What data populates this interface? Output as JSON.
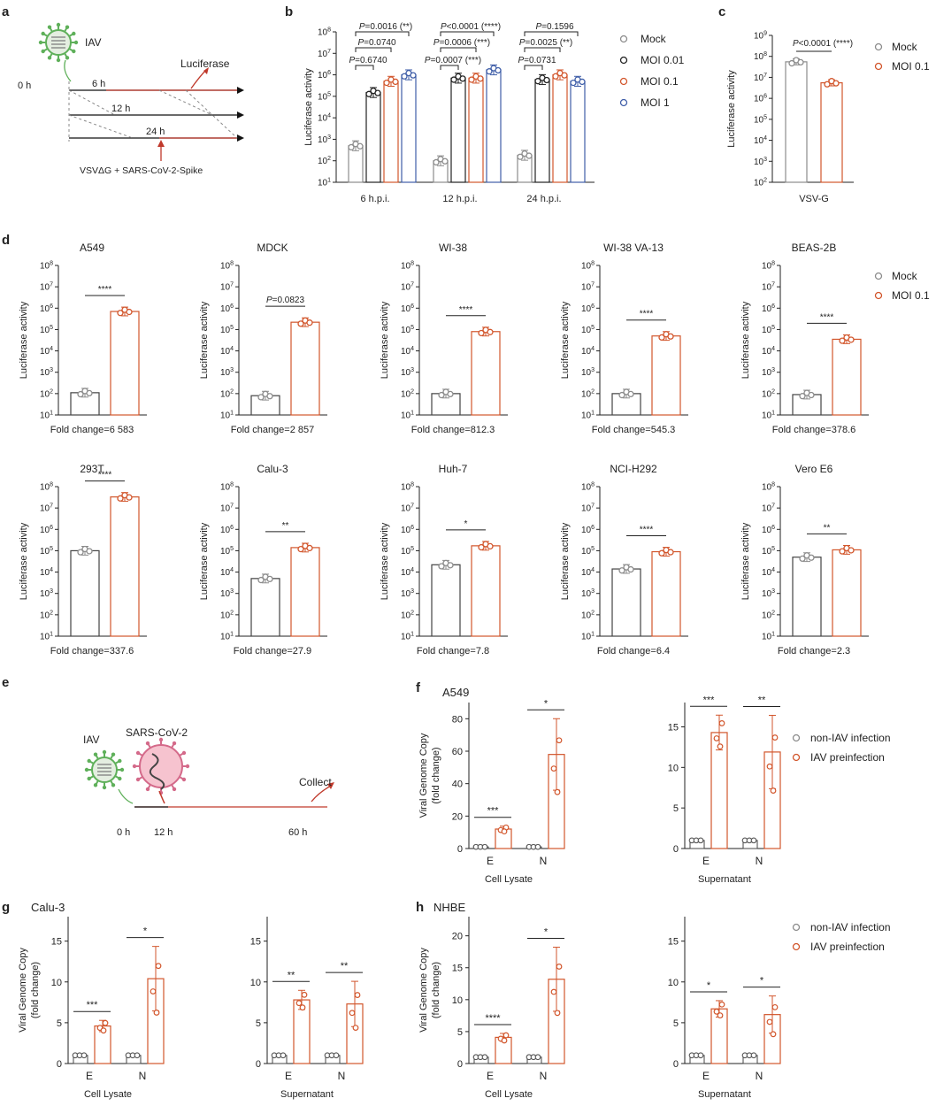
{
  "panel_letters": [
    "a",
    "b",
    "c",
    "d",
    "e",
    "f",
    "g",
    "h"
  ],
  "colors": {
    "mock": "#8c8c8c",
    "moi001": "#222222",
    "moi01": "#d2562c",
    "moi1": "#3f5ea8",
    "axis": "#222222",
    "virus_green": "#5fb05a",
    "virus_pink": "#e48aa3",
    "arrow_red": "#c0392b"
  },
  "schematic_a": {
    "virus": "IAV",
    "t0": "0 h",
    "t6": "6 h",
    "t12": "12 h",
    "t24": "24 h",
    "readout": "Luciferase",
    "pseudovirus": "VSVΔG + SARS-CoV-2-Spike"
  },
  "schematic_e": {
    "virus1": "IAV",
    "virus2": "SARS-CoV-2",
    "t0": "0 h",
    "t12": "12 h",
    "t60": "60 h",
    "collect": "Collect"
  },
  "legend_b": [
    "Mock",
    "MOI 0.01",
    "MOI 0.1",
    "MOI 1"
  ],
  "legend_c": [
    "Mock",
    "MOI 0.1"
  ],
  "legend_d": [
    "Mock",
    "MOI 0.1"
  ],
  "legend_fgh": [
    "non-IAV infection",
    "IAV preinfection"
  ],
  "chart_data": [
    {
      "id": "b",
      "type": "bar",
      "scale": "log",
      "ylabel": "Luciferase activity",
      "ylim": [
        10,
        100000000
      ],
      "yticks": [
        "10^1",
        "10^2",
        "10^3",
        "10^4",
        "10^5",
        "10^6",
        "10^7",
        "10^8"
      ],
      "categories": [
        "6 h.p.i.",
        "12 h.p.i.",
        "24 h.p.i."
      ],
      "series": [
        {
          "name": "Mock",
          "values": [
            500,
            100,
            180
          ]
        },
        {
          "name": "MOI 0.01",
          "values": [
            150000,
            700000,
            600000
          ]
        },
        {
          "name": "MOI 0.1",
          "values": [
            500000,
            700000,
            1000000
          ]
        },
        {
          "name": "MOI 1",
          "values": [
            1000000,
            1700000,
            500000
          ]
        }
      ],
      "annotations": [
        [
          "6 h.p.i.",
          "P=0.6740",
          "P=0.0740",
          "P=0.0016 (**)"
        ],
        [
          "12 h.p.i.",
          "P=0.0007 (***)",
          "P=0.0006 (***)",
          "P<0.0001 (****)"
        ],
        [
          "24 h.p.i.",
          "P=0.0731",
          "P=0.0025 (**)",
          "P=0.1596"
        ]
      ]
    },
    {
      "id": "c",
      "type": "bar",
      "scale": "log",
      "ylabel": "Luciferase activity",
      "ylim": [
        100,
        1000000000
      ],
      "yticks": [
        "10^2",
        "10^3",
        "10^4",
        "10^5",
        "10^6",
        "10^7",
        "10^8",
        "10^9"
      ],
      "categories": [
        "VSV-G"
      ],
      "series": [
        {
          "name": "Mock",
          "values": [
            55000000
          ]
        },
        {
          "name": "MOI 0.1",
          "values": [
            5500000
          ]
        }
      ],
      "annotations": [
        "P<0.0001 (****)"
      ]
    },
    {
      "id": "d",
      "type": "bar",
      "scale": "log",
      "ylabel": "Luciferase activity",
      "ylim": [
        10,
        100000000
      ],
      "yticks": [
        "10^1",
        "10^2",
        "10^3",
        "10^4",
        "10^5",
        "10^6",
        "10^7",
        "10^8"
      ],
      "series_names": [
        "Mock",
        "MOI 0.1"
      ],
      "subplots": [
        {
          "title": "A549",
          "mock": 110,
          "moi": 700000,
          "sig": "****",
          "fold": "Fold change=6 583"
        },
        {
          "title": "MDCK",
          "mock": 80,
          "moi": 220000,
          "sig": "P=0.0823",
          "fold": "Fold change=2 857"
        },
        {
          "title": "WI-38",
          "mock": 100,
          "moi": 80000,
          "sig": "****",
          "fold": "Fold change=812.3"
        },
        {
          "title": "WI-38 VA-13",
          "mock": 100,
          "moi": 50000,
          "sig": "****",
          "fold": "Fold change=545.3"
        },
        {
          "title": "BEAS-2B",
          "mock": 90,
          "moi": 35000,
          "sig": "****",
          "fold": "Fold change=378.6"
        },
        {
          "title": "293T",
          "mock": 100000,
          "moi": 33000000,
          "sig": "****",
          "fold": "Fold change=337.6"
        },
        {
          "title": "Calu-3",
          "mock": 5000,
          "moi": 140000,
          "sig": "**",
          "fold": "Fold change=27.9"
        },
        {
          "title": "Huh-7",
          "mock": 22000,
          "moi": 170000,
          "sig": "*",
          "fold": "Fold change=7.8"
        },
        {
          "title": "NCI-H292",
          "mock": 14000,
          "moi": 90000,
          "sig": "****",
          "fold": "Fold change=6.4"
        },
        {
          "title": "Vero E6",
          "mock": 50000,
          "moi": 110000,
          "sig": "**",
          "fold": "Fold change=2.3"
        }
      ]
    },
    {
      "id": "f",
      "type": "bar",
      "group_title": "A549",
      "ylabel": "Viral Genome Copy",
      "ylabel2": "(fold change)",
      "series_names": [
        "non-IAV infection",
        "IAV preinfection"
      ],
      "subplots": [
        {
          "xlabel": "Cell Lysate",
          "ylim": [
            0,
            90
          ],
          "yticks": [
            0,
            20,
            40,
            60,
            80
          ],
          "categories": [
            "E",
            "N"
          ],
          "control": [
            1,
            1
          ],
          "treated": [
            12,
            58
          ],
          "sig": [
            "***",
            "*"
          ]
        },
        {
          "xlabel": "Supernatant",
          "ylim": [
            0,
            18
          ],
          "yticks": [
            0,
            5,
            10,
            15
          ],
          "categories": [
            "E",
            "N"
          ],
          "control": [
            1,
            1
          ],
          "treated": [
            14.3,
            11.9
          ],
          "sig": [
            "***",
            "**"
          ]
        }
      ]
    },
    {
      "id": "g",
      "type": "bar",
      "group_title": "Calu-3",
      "ylabel": "Viral Genome Copy",
      "ylabel2": "(fold change)",
      "series_names": [
        "non-IAV infection",
        "IAV preinfection"
      ],
      "subplots": [
        {
          "xlabel": "Cell Lysate",
          "ylim": [
            0,
            18
          ],
          "yticks": [
            0,
            5,
            10,
            15
          ],
          "categories": [
            "E",
            "N"
          ],
          "control": [
            1,
            1
          ],
          "treated": [
            4.6,
            10.4
          ],
          "sig": [
            "***",
            "*"
          ]
        },
        {
          "xlabel": "Supernatant",
          "ylim": [
            0,
            18
          ],
          "yticks": [
            0,
            5,
            10,
            15
          ],
          "categories": [
            "E",
            "N"
          ],
          "control": [
            1,
            1
          ],
          "treated": [
            7.8,
            7.3
          ],
          "sig": [
            "**",
            "**"
          ]
        }
      ]
    },
    {
      "id": "h",
      "type": "bar",
      "group_title": "NHBE",
      "ylabel": "Viral Genome Copy",
      "ylabel2": "(fold change)",
      "series_names": [
        "non-IAV infection",
        "IAV preinfection"
      ],
      "subplots": [
        {
          "xlabel": "Cell Lysate",
          "ylim": [
            0,
            23
          ],
          "yticks": [
            0,
            5,
            10,
            15,
            20
          ],
          "categories": [
            "E",
            "N"
          ],
          "control": [
            1,
            1
          ],
          "treated": [
            4.1,
            13.2
          ],
          "sig": [
            "****",
            "*"
          ]
        },
        {
          "xlabel": "Supernatant",
          "ylim": [
            0,
            18
          ],
          "yticks": [
            0,
            5,
            10,
            15
          ],
          "categories": [
            "E",
            "N"
          ],
          "control": [
            1,
            1
          ],
          "treated": [
            6.7,
            6.0
          ],
          "sig": [
            "*",
            "*"
          ]
        }
      ]
    }
  ]
}
